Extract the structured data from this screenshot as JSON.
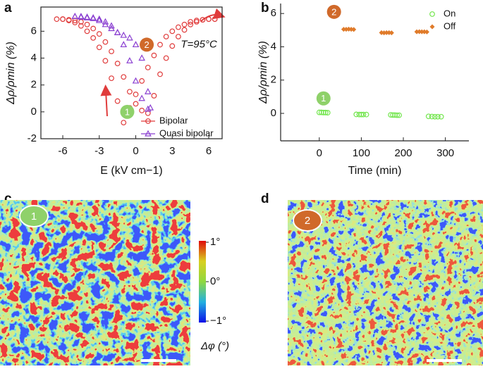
{
  "chart_data": [
    {
      "type": "scatter",
      "panel": "a",
      "xlabel": "E (kV cm−1)",
      "ylabel": "Δρ/ρmin (%)",
      "xlim": [
        -7.8,
        7.1
      ],
      "ylim": [
        -2,
        7.8
      ],
      "xticks": [
        -6,
        -3,
        0,
        3,
        6
      ],
      "yticks": [
        -2,
        0,
        2,
        4,
        6
      ],
      "annotations": [
        "T=95°C",
        "1",
        "2"
      ],
      "series": [
        {
          "name": "Bipolar",
          "color": "#e03c3c",
          "marker": "circle",
          "x": [
            6.5,
            6,
            5.5,
            5,
            4.5,
            4,
            3.5,
            3,
            2.5,
            2,
            1.5,
            1,
            0.5,
            0,
            -0.5,
            -1,
            -1.5,
            -2,
            -2.5,
            -3,
            -3.5,
            -4,
            -4.5,
            -5,
            -5.5,
            -6,
            -6.5,
            -6,
            -5.5,
            -5,
            -4.5,
            -4,
            -3.5,
            -3,
            -2.5,
            -2,
            -1.5,
            -1,
            -0.5,
            0,
            0.5,
            1,
            1.5,
            2,
            2.5,
            3,
            3.5,
            4,
            4.5,
            5,
            5.5,
            6,
            6.5
          ],
          "values": [
            6.9,
            6.9,
            6.85,
            6.8,
            6.7,
            6.5,
            6.3,
            6.0,
            5.6,
            5.0,
            4.2,
            3.3,
            2.3,
            1.3,
            0.3,
            -0.8,
            0.8,
            2.5,
            3.8,
            4.8,
            5.5,
            6.0,
            6.4,
            6.65,
            6.8,
            6.9,
            6.9,
            6.9,
            6.85,
            6.8,
            6.7,
            6.5,
            6.2,
            5.8,
            5.2,
            4.5,
            3.6,
            2.6,
            1.5,
            0.6,
            0.1,
            -0.1,
            1.2,
            2.8,
            4.0,
            4.9,
            5.6,
            6.1,
            6.5,
            6.7,
            6.85,
            6.9,
            6.9
          ]
        },
        {
          "name": "Quasi bipolar",
          "color": "#8a3fd1",
          "marker": "triangle",
          "x": [
            -5,
            -4.5,
            -4,
            -3.5,
            -3,
            -2.5,
            -2,
            -1.5,
            -1,
            -0.5,
            0,
            0.5,
            1,
            1.2,
            1,
            0.5,
            0,
            -0.5,
            -1,
            -1.5,
            -2,
            -2.5,
            -3,
            -3.5,
            -4,
            -4.5,
            -5
          ],
          "values": [
            7.1,
            7.1,
            7.05,
            7.0,
            6.9,
            6.7,
            6.4,
            5.9,
            5.0,
            3.8,
            2.3,
            1.0,
            0.2,
            0.3,
            1.5,
            4.0,
            5.0,
            5.5,
            5.7,
            5.9,
            6.2,
            6.5,
            6.8,
            6.95,
            7.0,
            7.05,
            7.1
          ]
        }
      ]
    },
    {
      "type": "scatter",
      "panel": "b",
      "xlabel": "Time (min)",
      "ylabel": "Δρ/ρmin (%)",
      "xlim": [
        -92,
        356
      ],
      "ylim": [
        -1.65,
        6.6
      ],
      "xticks": [
        0,
        100,
        200,
        300
      ],
      "yticks": [
        0,
        2,
        4,
        6
      ],
      "annotations": [
        "1",
        "2"
      ],
      "series": [
        {
          "name": "On",
          "color": "#74e64f",
          "marker": "circle",
          "x": [
            0,
            5,
            10,
            15,
            20,
            88,
            95,
            100,
            105,
            112,
            170,
            175,
            180,
            185,
            190,
            260,
            268,
            275,
            282,
            290
          ],
          "values": [
            0.06,
            0.06,
            0.05,
            0.05,
            0.04,
            -0.06,
            -0.07,
            -0.07,
            -0.07,
            -0.07,
            -0.09,
            -0.1,
            -0.1,
            -0.11,
            -0.11,
            -0.18,
            -0.19,
            -0.2,
            -0.2,
            -0.2
          ]
        },
        {
          "name": "Off",
          "color": "#e07b2a",
          "marker": "diamond",
          "x": [
            58,
            64,
            70,
            76,
            82,
            148,
            154,
            160,
            166,
            172,
            232,
            238,
            244,
            250,
            256
          ],
          "values": [
            5.05,
            5.05,
            5.06,
            5.05,
            5.04,
            4.85,
            4.84,
            4.85,
            4.85,
            4.84,
            4.9,
            4.91,
            4.9,
            4.9,
            4.89
          ]
        }
      ]
    }
  ],
  "maps": [
    {
      "panel": "c",
      "marker": "1"
    },
    {
      "panel": "d",
      "marker": "2"
    }
  ],
  "colorbar": {
    "lim": [
      -1,
      1
    ],
    "label": "Δφ (°)",
    "ticks": [
      {
        "value": 1,
        "label": "1°"
      },
      {
        "value": 0,
        "label": "0°"
      },
      {
        "value": -1,
        "label": "−1°"
      }
    ]
  }
}
